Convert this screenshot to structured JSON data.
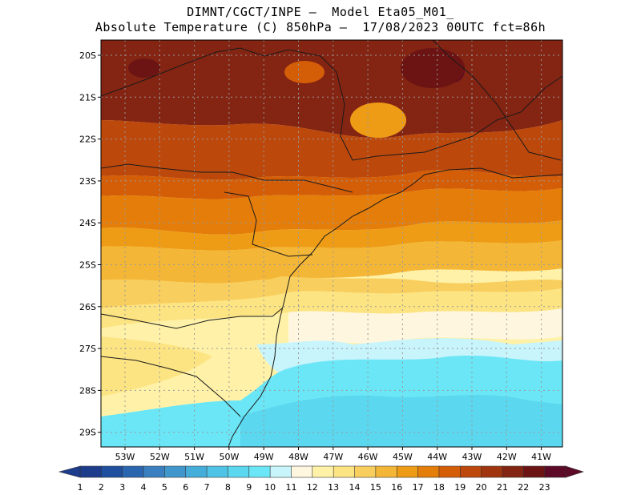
{
  "header": {
    "line1": "DIMNT/CGCT/INPE –  Model Eta05_M01_",
    "line2": "Absolute Temperature (C) 850hPa –  17/08/2023 00UTC fct=86h"
  },
  "map": {
    "lat_labels": [
      "20S",
      "21S",
      "22S",
      "23S",
      "24S",
      "25S",
      "26S",
      "27S",
      "28S",
      "29S"
    ],
    "lon_labels": [
      "53W",
      "52W",
      "51W",
      "50W",
      "49W",
      "48W",
      "47W",
      "46W",
      "45W",
      "44W",
      "43W",
      "42W",
      "41W"
    ],
    "grid": "dotted"
  },
  "colorbar": {
    "labels": [
      "1",
      "2",
      "3",
      "4",
      "5",
      "6",
      "7",
      "8",
      "9",
      "10",
      "11",
      "12",
      "13",
      "14",
      "15",
      "16",
      "17",
      "18",
      "19",
      "20",
      "21",
      "22",
      "23"
    ],
    "colors": [
      "#1e3c8c",
      "#1f4f9e",
      "#2a66b0",
      "#3a80c0",
      "#3f97cc",
      "#45adda",
      "#4fc3e6",
      "#5bd8ef",
      "#6ae6f6",
      "#c8f4fb",
      "#fff6e0",
      "#fff2a8",
      "#fde483",
      "#f8cf5e",
      "#f4b637",
      "#ee9c16",
      "#e47d0a",
      "#d45e08",
      "#bc480c",
      "#a0340f",
      "#842412",
      "#6c1414",
      "#5c0a28"
    ]
  }
}
